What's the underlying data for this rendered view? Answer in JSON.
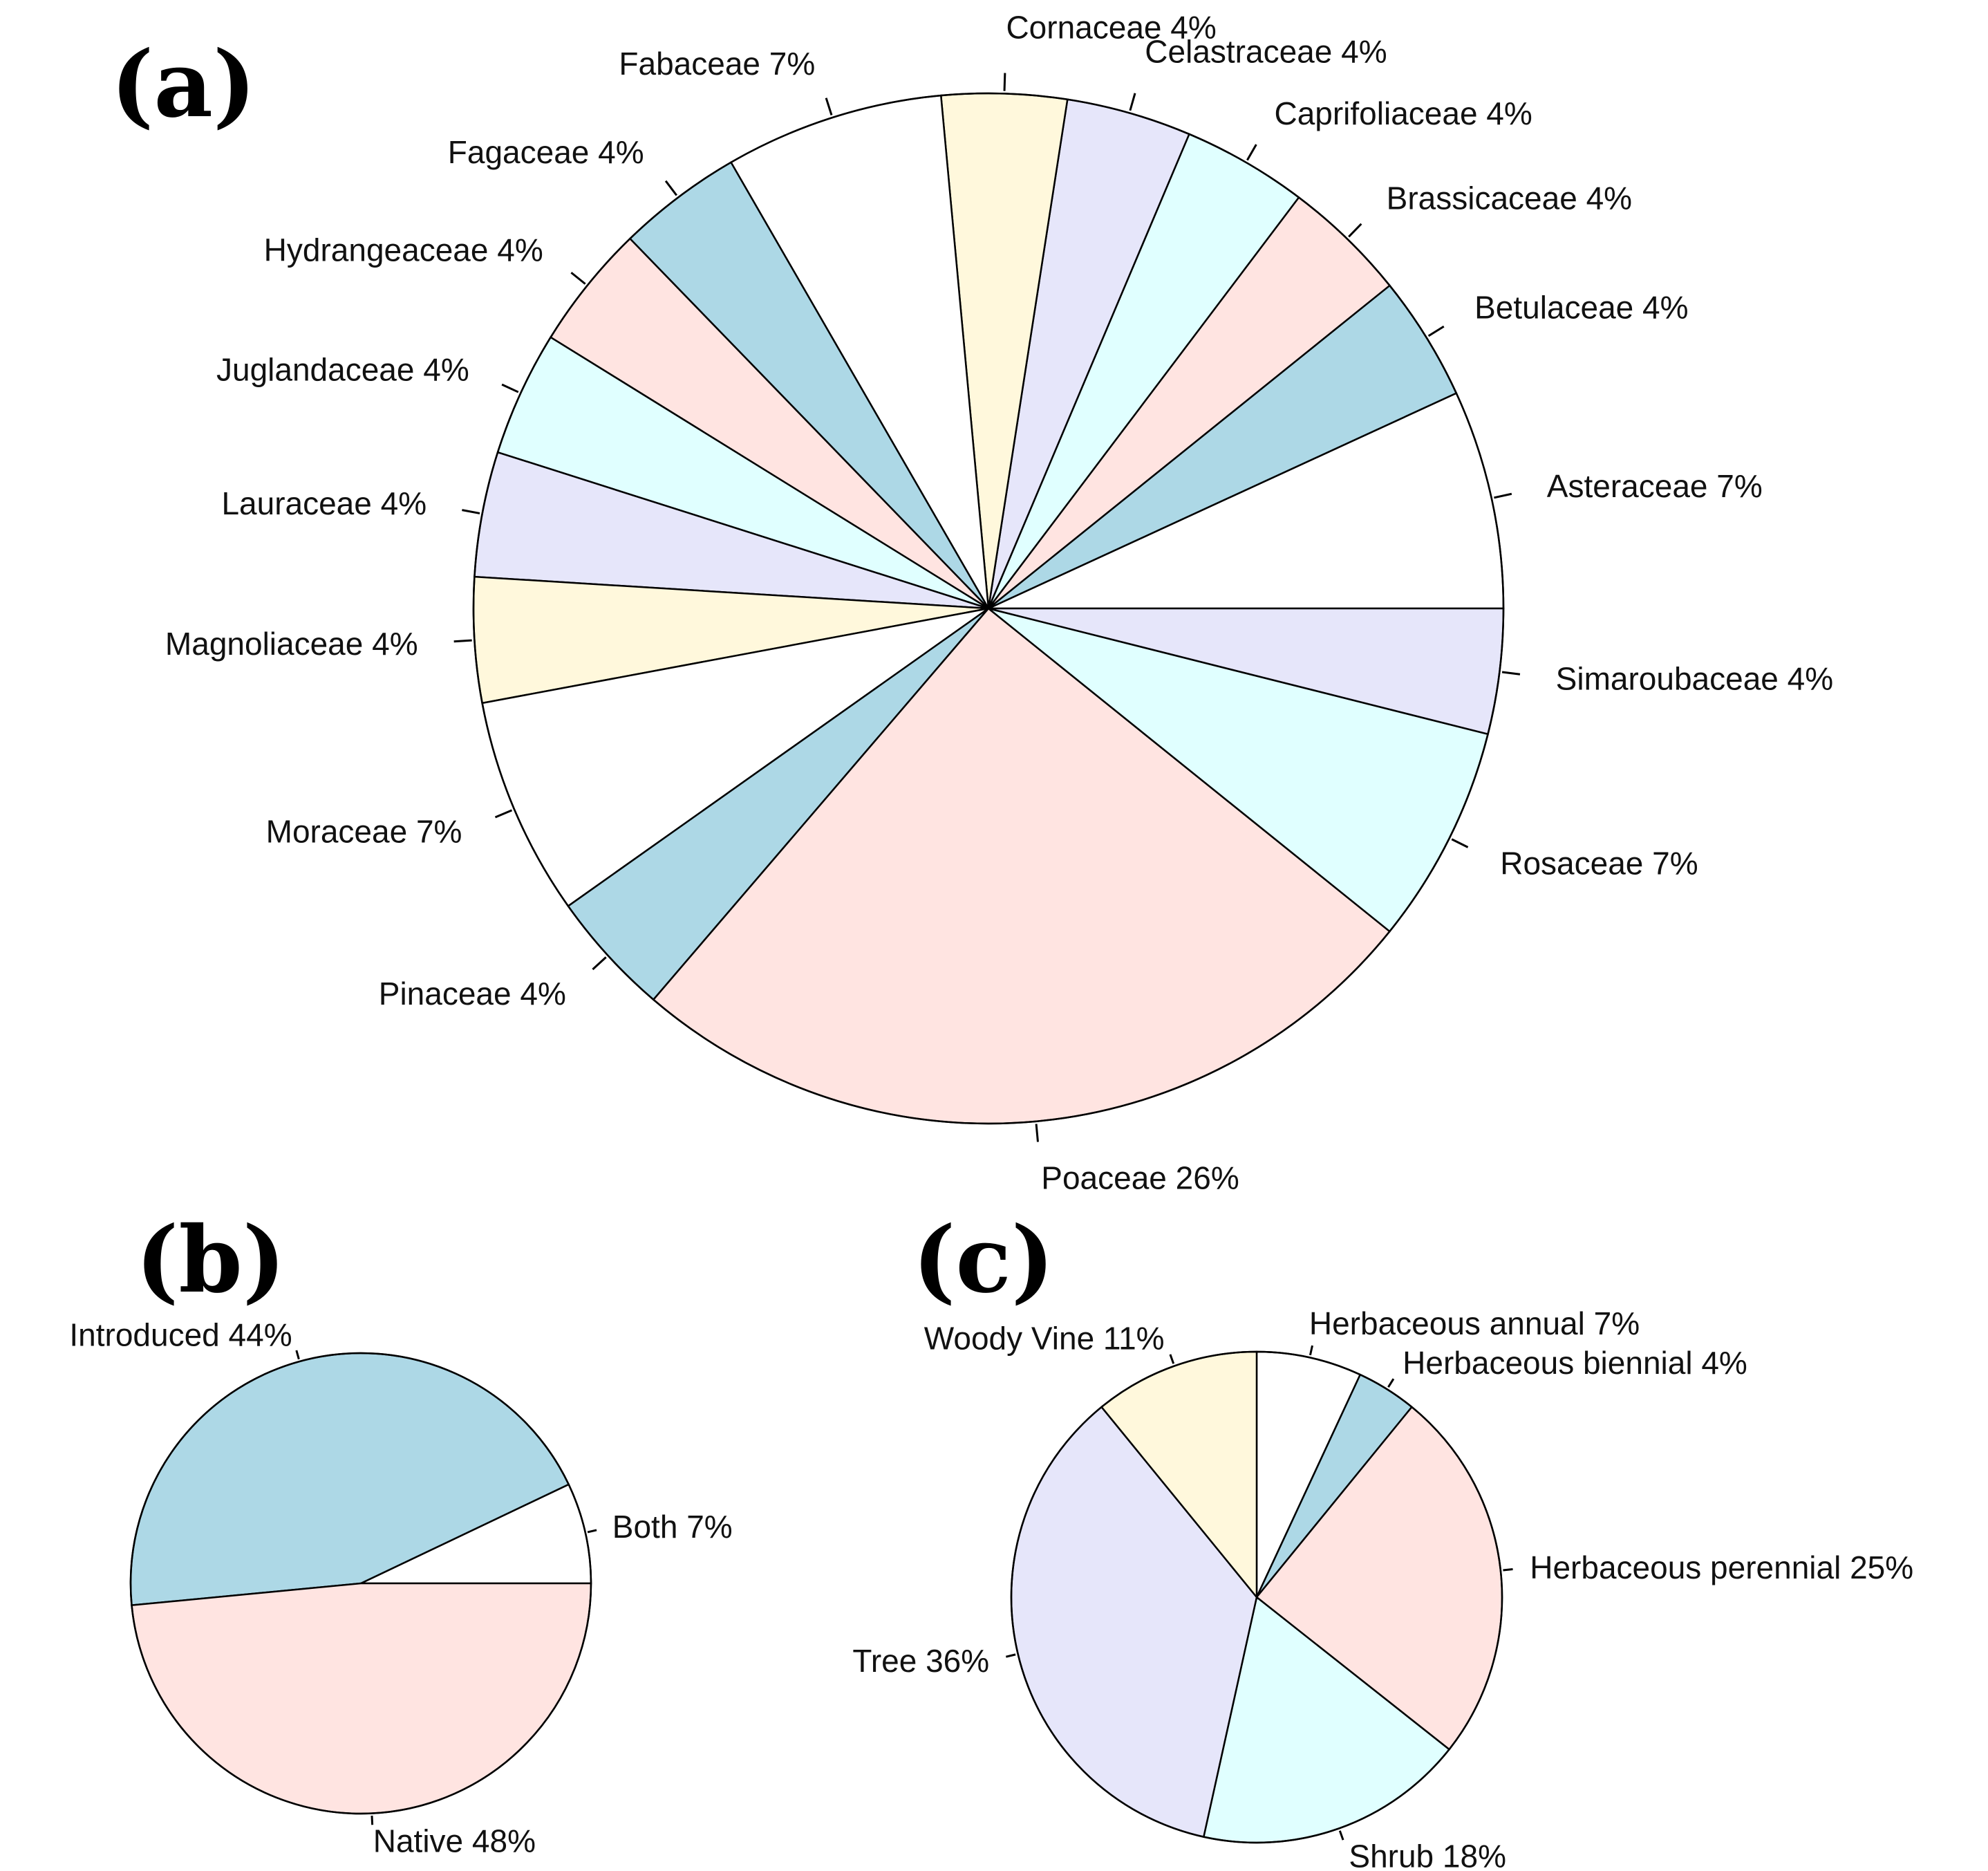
{
  "chart_data": [
    {
      "type": "pie",
      "panel_label": "(a)",
      "title": "",
      "start_angle_deg": 0,
      "direction": "counterclockwise",
      "slices": [
        {
          "label": "Asteraceae 7%",
          "value": 7,
          "color": "#ffffff"
        },
        {
          "label": "Betulaceae 4%",
          "value": 4,
          "color": "#add8e6"
        },
        {
          "label": "Brassicaceae 4%",
          "value": 4,
          "color": "#ffe4e1"
        },
        {
          "label": "Caprifoliaceae 4%",
          "value": 4,
          "color": "#e0ffff"
        },
        {
          "label": "Celastraceae 4%",
          "value": 4,
          "color": "#e6e6fa"
        },
        {
          "label": "Cornaceae 4%",
          "value": 4,
          "color": "#fff8dc"
        },
        {
          "label": "Fabaceae 7%",
          "value": 7,
          "color": "#ffffff"
        },
        {
          "label": "Fagaceae 4%",
          "value": 4,
          "color": "#add8e6"
        },
        {
          "label": "Hydrangeaceae 4%",
          "value": 4,
          "color": "#ffe4e1"
        },
        {
          "label": "Juglandaceae 4%",
          "value": 4,
          "color": "#e0ffff"
        },
        {
          "label": "Lauraceae 4%",
          "value": 4,
          "color": "#e6e6fa"
        },
        {
          "label": "Magnoliaceae 4%",
          "value": 4,
          "color": "#fff8dc"
        },
        {
          "label": "Moraceae 7%",
          "value": 7,
          "color": "#ffffff"
        },
        {
          "label": "Pinaceae 4%",
          "value": 4,
          "color": "#add8e6"
        },
        {
          "label": "Poaceae 26%",
          "value": 26,
          "color": "#ffe4e1"
        },
        {
          "label": "Rosaceae 7%",
          "value": 7,
          "color": "#e0ffff"
        },
        {
          "label": "Simaroubaceae 4%",
          "value": 4,
          "color": "#e6e6fa"
        }
      ]
    },
    {
      "type": "pie",
      "panel_label": "(b)",
      "title": "",
      "start_angle_deg": 0,
      "direction": "counterclockwise",
      "slices": [
        {
          "label": "Both 7%",
          "value": 7,
          "color": "#ffffff"
        },
        {
          "label": "Introduced 44%",
          "value": 44,
          "color": "#add8e6"
        },
        {
          "label": "Native 48%",
          "value": 48,
          "color": "#ffe4e1"
        }
      ]
    },
    {
      "type": "pie",
      "panel_label": "(c)",
      "title": "",
      "start_angle_deg": 90,
      "direction": "clockwise",
      "slices": [
        {
          "label": "Herbaceous annual 7%",
          "value": 7,
          "color": "#ffffff"
        },
        {
          "label": "Herbaceous biennial 4%",
          "value": 4,
          "color": "#add8e6"
        },
        {
          "label": "Herbaceous perennial 25%",
          "value": 25,
          "color": "#ffe4e1"
        },
        {
          "label": "Shrub 18%",
          "value": 18,
          "color": "#e0ffff"
        },
        {
          "label": "Tree 36%",
          "value": 36,
          "color": "#e6e6fa"
        },
        {
          "label": "Woody Vine 11%",
          "value": 11,
          "color": "#fff8dc"
        }
      ]
    }
  ]
}
